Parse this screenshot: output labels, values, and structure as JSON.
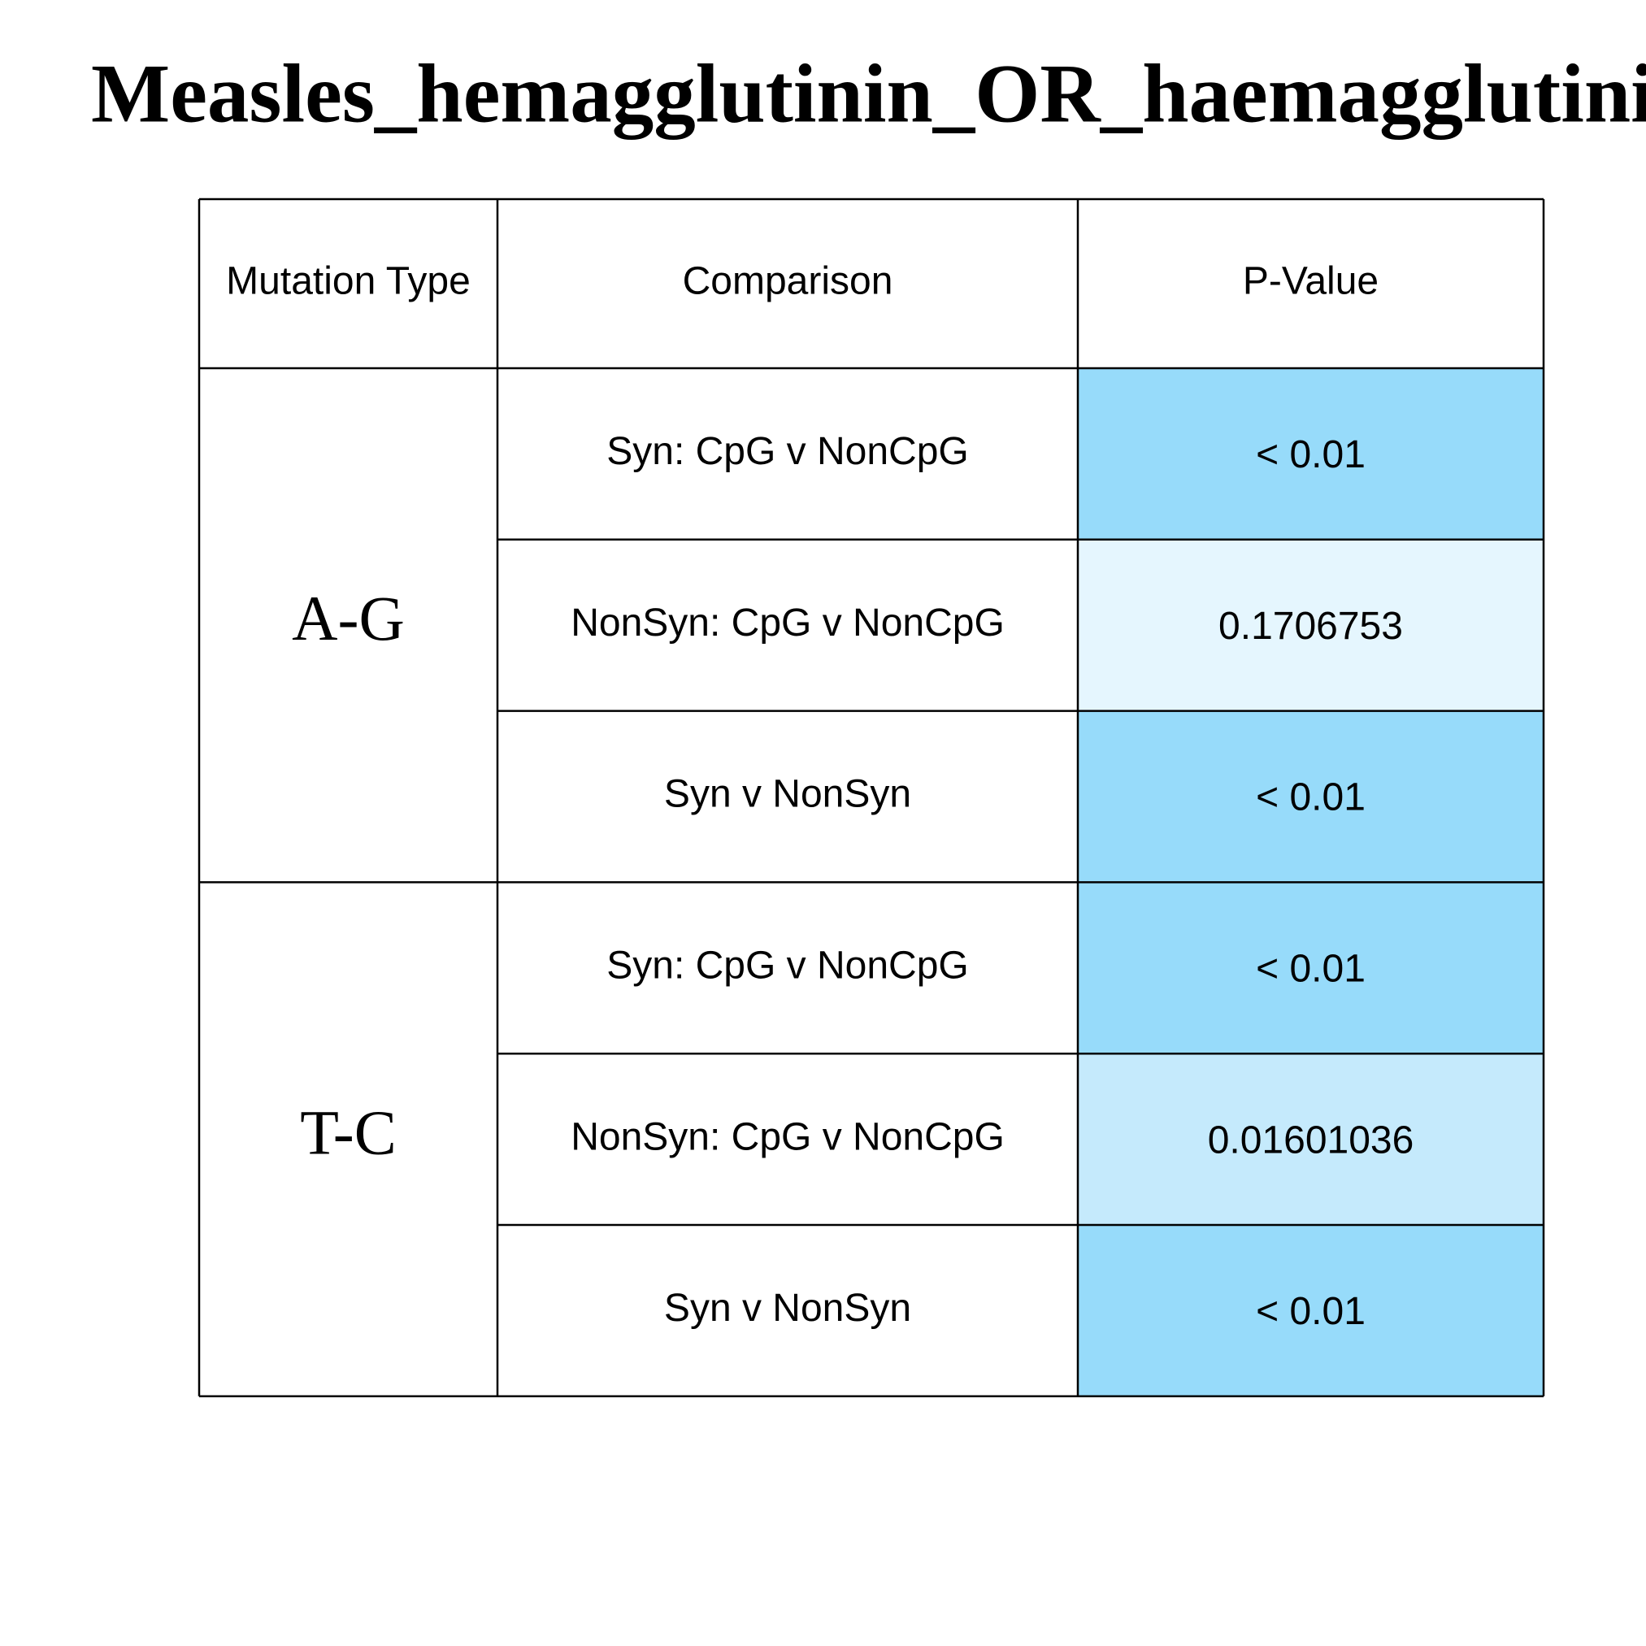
{
  "title": "Measles_hemagglutinin_OR_haemagglutinin",
  "table": {
    "columns": [
      "Mutation Type",
      "Comparison",
      "P-Value"
    ],
    "groups": [
      {
        "label": "A-G",
        "rows": [
          {
            "comparison": "Syn: CpG v NonCpG",
            "p_value": "< 0.01",
            "color": "#97dbfa"
          },
          {
            "comparison": "NonSyn: CpG v NonCpG",
            "p_value": "0.1706753",
            "color": "#e5f6fe"
          },
          {
            "comparison": "Syn v NonSyn",
            "p_value": "< 0.01",
            "color": "#97dbfa"
          }
        ]
      },
      {
        "label": "T-C",
        "rows": [
          {
            "comparison": "Syn: CpG v NonCpG",
            "p_value": "< 0.01",
            "color": "#97dbfa"
          },
          {
            "comparison": "NonSyn: CpG v NonCpG",
            "p_value": "0.01601036",
            "color": "#c5eafc"
          },
          {
            "comparison": "Syn v NonSyn",
            "p_value": "< 0.01",
            "color": "#97dbfa"
          }
        ]
      }
    ]
  }
}
